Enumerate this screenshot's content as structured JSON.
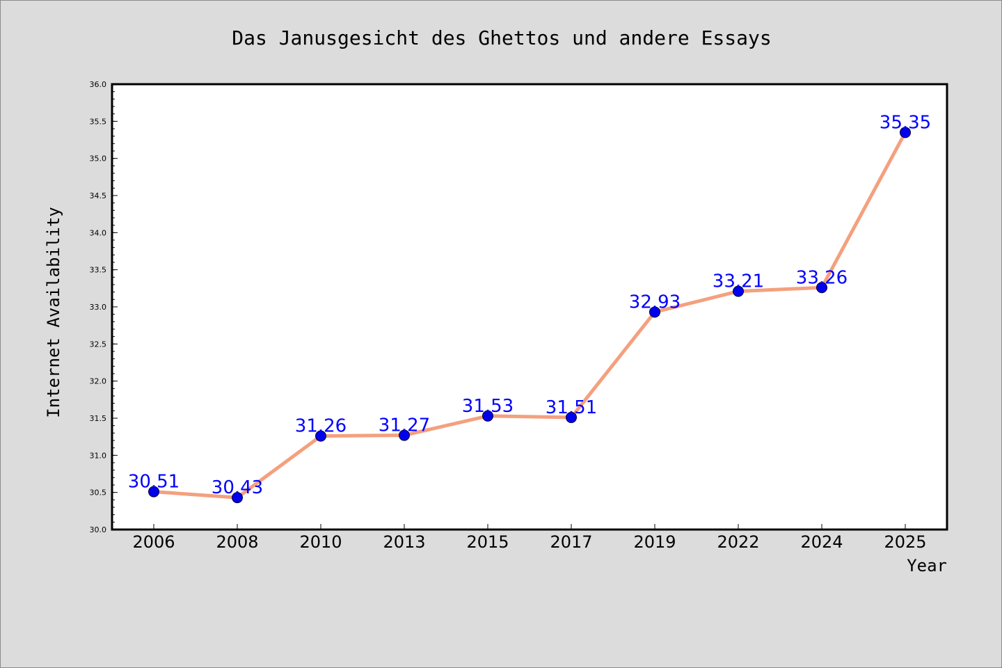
{
  "chart_data": {
    "type": "line",
    "title": "Das Janusgesicht des Ghettos und andere Essays",
    "xlabel": "Year",
    "ylabel": "Internet Availability",
    "categories": [
      "2006",
      "2008",
      "2010",
      "2013",
      "2015",
      "2017",
      "2019",
      "2022",
      "2024",
      "2025"
    ],
    "series": [
      {
        "values": [
          30.51,
          30.43,
          31.26,
          31.27,
          31.53,
          31.51,
          32.93,
          33.21,
          33.26,
          35.35
        ]
      }
    ],
    "data_labels": [
      "30.51",
      "30.43",
      "31.26",
      "31.27",
      "31.53",
      "31.51",
      "32.93",
      "33.21",
      "33.26",
      "35.35"
    ],
    "ylim": [
      30.0,
      36.0
    ],
    "yticks": [
      "30.0",
      "30.5",
      "31.0",
      "31.5",
      "32.0",
      "32.5",
      "33.0",
      "33.5",
      "34.0",
      "34.5",
      "35.0",
      "35.5",
      "36.0"
    ],
    "grid": false,
    "colors": {
      "line": "#f4a07e",
      "marker": "#0000ee",
      "label": "#0000ff",
      "background": "#dcdcdc",
      "plot_background": "#ffffff"
    }
  }
}
